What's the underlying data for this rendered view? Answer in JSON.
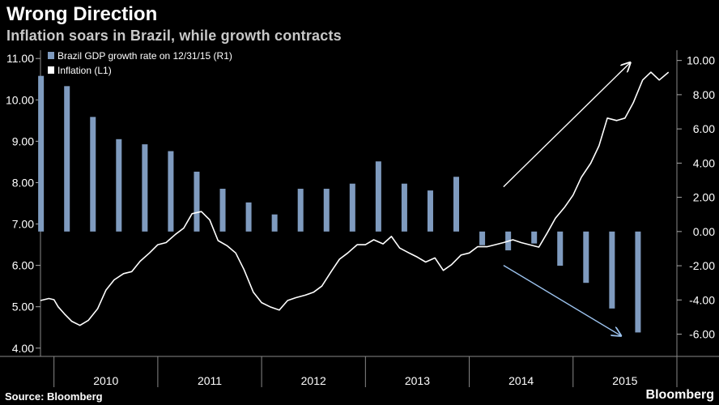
{
  "chart_data": {
    "type": "bar+line",
    "title": "Wrong Direction",
    "subtitle": "Inflation soars in Brazil, while growth contracts",
    "source": "Source: Bloomberg",
    "brand": "Bloomberg",
    "left_axis": {
      "label": "Inflation (L1)",
      "ylim": [
        3.8,
        11.2
      ],
      "ticks": [
        4.0,
        5.0,
        6.0,
        7.0,
        8.0,
        9.0,
        10.0,
        11.0
      ],
      "tick_labels": [
        "4.00",
        "5.00",
        "6.00",
        "7.00",
        "8.00",
        "9.00",
        "10.00",
        "11.00"
      ]
    },
    "right_axis": {
      "label": "Brazil GDP growth rate on 12/31/15 (R1)",
      "ylim": [
        -7.3,
        10.6
      ],
      "ticks": [
        -6,
        -4,
        -2,
        0,
        2,
        4,
        6,
        8,
        10
      ],
      "tick_labels": [
        "-6.00",
        "-4.00",
        "-2.00",
        "0.00",
        "2.00",
        "4.00",
        "6.00",
        "8.00",
        "10.00"
      ]
    },
    "x_range": [
      2009.87,
      2016.0
    ],
    "years": [
      "2010",
      "2011",
      "2012",
      "2013",
      "2014",
      "2015"
    ],
    "legend": [
      {
        "label": "Brazil GDP growth rate on 12/31/15 (R1)",
        "color": "#7f9bbf"
      },
      {
        "label": "Inflation (L1)",
        "color": "#ffffff"
      }
    ],
    "gdp_growth": {
      "name": "Brazil GDP growth rate on 12/31/15 (R1)",
      "x": [
        2009.875,
        2010.125,
        2010.375,
        2010.625,
        2010.875,
        2011.125,
        2011.375,
        2011.625,
        2011.875,
        2012.125,
        2012.375,
        2012.625,
        2012.875,
        2013.125,
        2013.375,
        2013.625,
        2013.875,
        2014.125,
        2014.375,
        2014.625,
        2014.875,
        2015.125,
        2015.375,
        2015.625,
        2015.875
      ],
      "values": [
        9.1,
        8.5,
        6.7,
        5.4,
        5.1,
        4.7,
        3.5,
        2.5,
        1.7,
        1.0,
        2.5,
        2.5,
        2.8,
        4.1,
        2.8,
        2.4,
        3.2,
        -0.8,
        -1.1,
        -0.7,
        -2.0,
        -3.0,
        -4.5,
        -5.9,
        0.0
      ]
    },
    "inflation": {
      "name": "Inflation (L1)",
      "x": [
        2009.87,
        2009.95,
        2010.0,
        2010.04,
        2010.1,
        2010.17,
        2010.25,
        2010.33,
        2010.42,
        2010.5,
        2010.58,
        2010.67,
        2010.75,
        2010.83,
        2010.92,
        2011.0,
        2011.08,
        2011.17,
        2011.25,
        2011.33,
        2011.42,
        2011.5,
        2011.58,
        2011.67,
        2011.75,
        2011.83,
        2011.92,
        2012.0,
        2012.08,
        2012.17,
        2012.25,
        2012.33,
        2012.42,
        2012.5,
        2012.58,
        2012.67,
        2012.75,
        2012.83,
        2012.92,
        2013.0,
        2013.08,
        2013.17,
        2013.25,
        2013.33,
        2013.42,
        2013.5,
        2013.58,
        2013.67,
        2013.75,
        2013.83,
        2013.92,
        2014.0,
        2014.08,
        2014.17,
        2014.25,
        2014.33,
        2014.42,
        2014.5,
        2014.58,
        2014.67,
        2014.75,
        2014.83,
        2014.92,
        2015.0,
        2015.08,
        2015.17,
        2015.25,
        2015.33,
        2015.42,
        2015.5,
        2015.58,
        2015.67,
        2015.75,
        2015.83,
        2015.92
      ],
      "values": [
        5.15,
        5.2,
        5.17,
        5.0,
        4.83,
        4.65,
        4.55,
        4.67,
        4.95,
        5.4,
        5.65,
        5.8,
        5.85,
        6.1,
        6.3,
        6.5,
        6.55,
        6.75,
        6.9,
        7.25,
        7.3,
        7.1,
        6.6,
        6.47,
        6.3,
        5.9,
        5.35,
        5.1,
        5.0,
        4.92,
        5.15,
        5.22,
        5.28,
        5.35,
        5.5,
        5.85,
        6.15,
        6.3,
        6.5,
        6.5,
        6.62,
        6.52,
        6.7,
        6.42,
        6.3,
        6.2,
        6.08,
        6.18,
        5.88,
        6.02,
        6.25,
        6.3,
        6.45,
        6.45,
        6.5,
        6.55,
        6.62,
        6.55,
        6.5,
        6.44,
        6.78,
        7.14,
        7.41,
        7.7,
        8.13,
        8.47,
        8.89,
        9.56,
        9.5,
        9.56,
        9.93,
        10.48,
        10.67,
        10.48,
        10.67
      ]
    },
    "annotations": [
      {
        "type": "arrow",
        "label": "inflation-up-arrow",
        "color": "#ffffff",
        "from": {
          "x": 2014.33,
          "y_left": 7.9
        },
        "to": {
          "x": 2015.55,
          "y_left": 10.9
        }
      },
      {
        "type": "arrow",
        "label": "growth-down-arrow",
        "color": "#9cc3ef",
        "from": {
          "x": 2014.33,
          "y_left": 6.0
        },
        "to": {
          "x": 2015.46,
          "y_left": 4.3
        }
      }
    ]
  }
}
